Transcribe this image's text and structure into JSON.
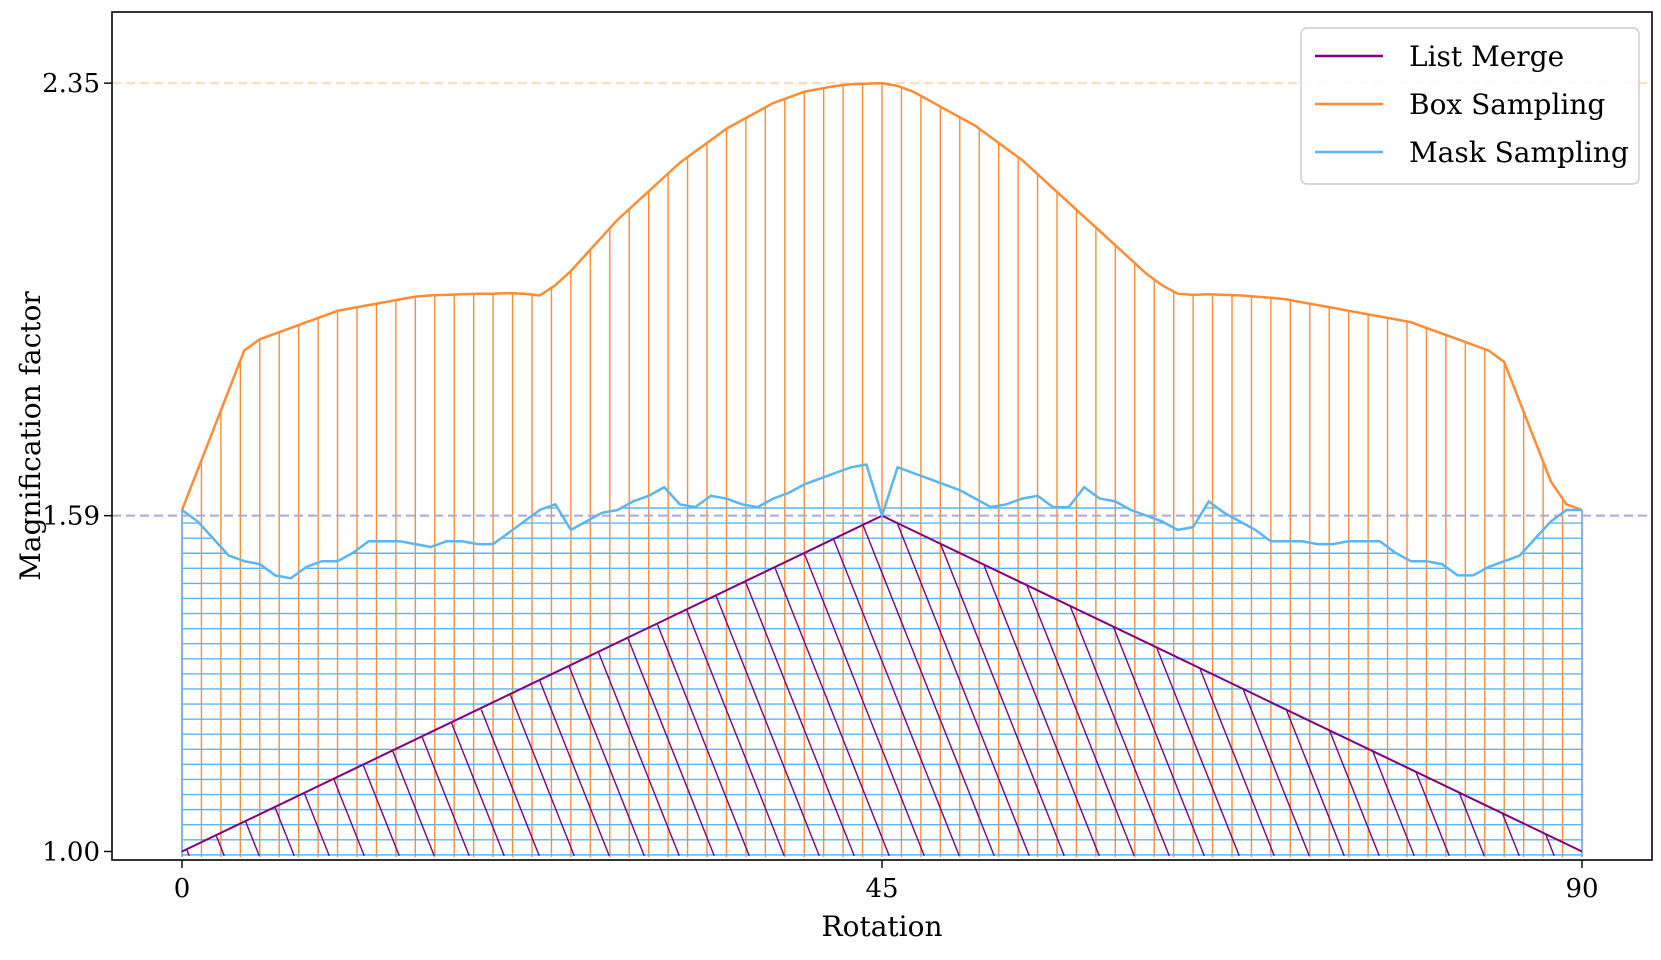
{
  "chart_data": {
    "type": "area",
    "xlabel": "Rotation",
    "ylabel": "Magnification factor",
    "xlim": [
      -4.5,
      94.5
    ],
    "ylim": [
      0.985,
      2.475
    ],
    "xticks": [
      0,
      45,
      90
    ],
    "yticks": [
      1.0,
      1.59,
      2.35
    ],
    "ytick_labels": [
      "1.00",
      "1.59",
      "2.35"
    ],
    "reference_lines": [
      {
        "value": 2.35,
        "color": "#ffd9b8"
      },
      {
        "value": 1.59,
        "color": "#a9a9d6"
      }
    ],
    "legend_position": "top-right",
    "series": [
      {
        "name": "List Merge",
        "color": "#800080",
        "x": [
          0,
          45,
          90
        ],
        "y": [
          1.0,
          1.59,
          1.0
        ],
        "hatch": "diagonal"
      },
      {
        "name": "Box Sampling",
        "color": "#ff8c33",
        "x": [
          0,
          1,
          2,
          3,
          4,
          5,
          6,
          7,
          8,
          9,
          10,
          11,
          12,
          13,
          14,
          15,
          16,
          17,
          18,
          19,
          20,
          21,
          22,
          23,
          24,
          25,
          26,
          27,
          28,
          29,
          30,
          31,
          32,
          33,
          34,
          35,
          36,
          37,
          38,
          39,
          40,
          41,
          42,
          43,
          44,
          45,
          46,
          47,
          48,
          49,
          50,
          51,
          52,
          53,
          54,
          55,
          56,
          57,
          58,
          59,
          60,
          61,
          62,
          63,
          64,
          65,
          66,
          67,
          68,
          69,
          70,
          71,
          72,
          73,
          74,
          75,
          76,
          77,
          78,
          79,
          80,
          81,
          82,
          83,
          84,
          85,
          86,
          87,
          88,
          89,
          90
        ],
        "y": [
          1.6,
          1.67,
          1.74,
          1.81,
          1.88,
          1.9,
          1.91,
          1.92,
          1.93,
          1.94,
          1.95,
          1.955,
          1.96,
          1.965,
          1.97,
          1.975,
          1.977,
          1.978,
          1.979,
          1.98,
          1.98,
          1.981,
          1.98,
          1.977,
          1.995,
          2.02,
          2.05,
          2.08,
          2.11,
          2.135,
          2.16,
          2.185,
          2.21,
          2.23,
          2.25,
          2.27,
          2.285,
          2.3,
          2.315,
          2.325,
          2.335,
          2.34,
          2.345,
          2.348,
          2.349,
          2.35,
          2.345,
          2.335,
          2.32,
          2.305,
          2.29,
          2.275,
          2.255,
          2.235,
          2.215,
          2.19,
          2.165,
          2.14,
          2.115,
          2.09,
          2.065,
          2.04,
          2.015,
          1.995,
          1.98,
          1.978,
          1.979,
          1.978,
          1.977,
          1.975,
          1.973,
          1.97,
          1.965,
          1.96,
          1.955,
          1.95,
          1.945,
          1.94,
          1.935,
          1.93,
          1.92,
          1.91,
          1.9,
          1.89,
          1.88,
          1.86,
          1.79,
          1.72,
          1.65,
          1.61,
          1.6
        ]
      },
      {
        "name": "Mask Sampling",
        "color": "#5bb5f0",
        "x": [
          0,
          1,
          2,
          3,
          4,
          5,
          6,
          7,
          8,
          9,
          10,
          11,
          12,
          13,
          14,
          15,
          16,
          17,
          18,
          19,
          20,
          21,
          22,
          23,
          24,
          25,
          26,
          27,
          28,
          29,
          30,
          31,
          32,
          33,
          34,
          35,
          36,
          37,
          38,
          39,
          40,
          41,
          42,
          43,
          44,
          45,
          46,
          47,
          48,
          49,
          50,
          51,
          52,
          53,
          54,
          55,
          56,
          57,
          58,
          59,
          60,
          61,
          62,
          63,
          64,
          65,
          66,
          67,
          68,
          69,
          70,
          71,
          72,
          73,
          74,
          75,
          76,
          77,
          78,
          79,
          80,
          81,
          82,
          83,
          84,
          85,
          86,
          87,
          88,
          89,
          90
        ],
        "y": [
          1.6,
          1.58,
          1.55,
          1.52,
          1.51,
          1.505,
          1.485,
          1.48,
          1.5,
          1.51,
          1.51,
          1.525,
          1.545,
          1.545,
          1.545,
          1.54,
          1.535,
          1.545,
          1.545,
          1.54,
          1.54,
          1.56,
          1.58,
          1.6,
          1.61,
          1.565,
          1.58,
          1.595,
          1.6,
          1.615,
          1.625,
          1.64,
          1.61,
          1.605,
          1.625,
          1.62,
          1.61,
          1.605,
          1.62,
          1.63,
          1.645,
          1.655,
          1.665,
          1.675,
          1.68,
          1.59,
          1.675,
          1.665,
          1.655,
          1.645,
          1.635,
          1.62,
          1.605,
          1.61,
          1.62,
          1.625,
          1.605,
          1.605,
          1.64,
          1.62,
          1.615,
          1.6,
          1.59,
          1.58,
          1.565,
          1.57,
          1.615,
          1.595,
          1.58,
          1.565,
          1.545,
          1.545,
          1.545,
          1.54,
          1.54,
          1.545,
          1.545,
          1.545,
          1.525,
          1.51,
          1.51,
          1.505,
          1.485,
          1.485,
          1.5,
          1.51,
          1.52,
          1.55,
          1.58,
          1.6,
          1.6
        ],
        "hatch": "horizontal"
      }
    ]
  }
}
